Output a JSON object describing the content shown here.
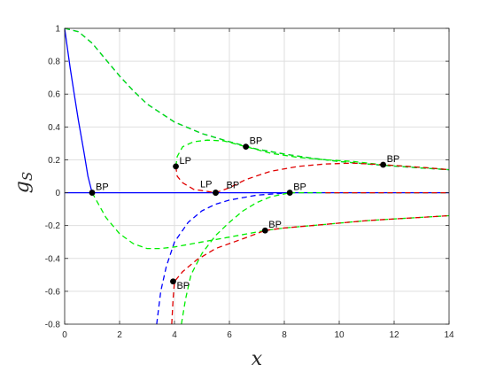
{
  "chart_data": {
    "type": "line",
    "xlabel": "x",
    "ylabel": {
      "main": "g",
      "sub": "S"
    },
    "xlim": [
      0,
      14
    ],
    "ylim": [
      -0.8,
      1
    ],
    "xticks": [
      0,
      2,
      4,
      6,
      8,
      10,
      12,
      14
    ],
    "yticks": [
      -0.8,
      -0.6,
      -0.4,
      -0.2,
      0,
      0.2,
      0.4,
      0.6,
      0.8,
      1
    ],
    "grid": true,
    "colors": {
      "blue": "#0000ff",
      "green": "#00ee00",
      "red": "#e00000",
      "axis": "#262626",
      "grid": "#dfdfdf"
    },
    "series": [
      {
        "color": "blue",
        "style": "solid",
        "points": [
          [
            0,
            1
          ],
          [
            0.1,
            0.88
          ],
          [
            0.2,
            0.76
          ],
          [
            0.35,
            0.6
          ],
          [
            0.5,
            0.44
          ],
          [
            0.7,
            0.25
          ],
          [
            0.85,
            0.1
          ],
          [
            1.0,
            0
          ]
        ]
      },
      {
        "color": "blue",
        "style": "solid",
        "points": [
          [
            0,
            0
          ],
          [
            14,
            0
          ]
        ]
      },
      {
        "color": "green",
        "style": "dashed",
        "points": [
          [
            8.2,
            0
          ],
          [
            14,
            0
          ]
        ]
      },
      {
        "color": "red",
        "style": "dashed",
        "points": [
          [
            9.5,
            0
          ],
          [
            14,
            0
          ]
        ]
      },
      {
        "color": "blue",
        "style": "dashed",
        "points": [
          [
            0,
            1
          ],
          [
            0.5,
            0.98
          ],
          [
            1,
            0.91
          ],
          [
            1.5,
            0.81
          ],
          [
            2,
            0.71
          ],
          [
            2.5,
            0.62
          ],
          [
            3,
            0.54
          ],
          [
            4,
            0.43
          ],
          [
            5,
            0.36
          ],
          [
            6,
            0.31
          ],
          [
            7,
            0.265
          ],
          [
            8,
            0.235
          ],
          [
            9,
            0.21
          ],
          [
            10,
            0.19
          ],
          [
            11,
            0.175
          ],
          [
            12,
            0.162
          ],
          [
            13,
            0.15
          ],
          [
            14,
            0.14
          ]
        ]
      },
      {
        "color": "green",
        "style": "dashed",
        "points": [
          [
            0,
            1
          ],
          [
            0.5,
            0.98
          ],
          [
            1,
            0.91
          ],
          [
            1.5,
            0.81
          ],
          [
            2,
            0.71
          ],
          [
            2.5,
            0.62
          ],
          [
            3,
            0.54
          ],
          [
            4,
            0.43
          ],
          [
            5,
            0.36
          ],
          [
            6,
            0.31
          ],
          [
            7,
            0.265
          ],
          [
            8,
            0.235
          ],
          [
            9,
            0.21
          ],
          [
            10,
            0.19
          ],
          [
            11,
            0.175
          ],
          [
            12,
            0.162
          ],
          [
            13,
            0.15
          ],
          [
            14,
            0.14
          ]
        ]
      },
      {
        "color": "green",
        "style": "dashed",
        "points": [
          [
            1,
            0
          ],
          [
            1.5,
            -0.15
          ],
          [
            2,
            -0.25
          ],
          [
            2.5,
            -0.31
          ],
          [
            3,
            -0.34
          ],
          [
            3.5,
            -0.34
          ],
          [
            4,
            -0.33
          ],
          [
            5,
            -0.3
          ],
          [
            6,
            -0.27
          ],
          [
            7.3,
            -0.23
          ],
          [
            8,
            -0.215
          ],
          [
            9,
            -0.2
          ],
          [
            10,
            -0.185
          ],
          [
            11,
            -0.17
          ],
          [
            12,
            -0.16
          ],
          [
            13,
            -0.15
          ],
          [
            14,
            -0.14
          ]
        ]
      },
      {
        "color": "red",
        "style": "dashed",
        "points": [
          [
            7.3,
            -0.23
          ],
          [
            8,
            -0.215
          ],
          [
            9,
            -0.2
          ],
          [
            10,
            -0.185
          ],
          [
            11,
            -0.17
          ],
          [
            12,
            -0.16
          ],
          [
            13,
            -0.15
          ],
          [
            14,
            -0.14
          ]
        ]
      },
      {
        "color": "blue",
        "style": "dashed",
        "points": [
          [
            3.35,
            -0.8
          ],
          [
            3.5,
            -0.6
          ],
          [
            3.7,
            -0.45
          ],
          [
            4,
            -0.3
          ],
          [
            4.5,
            -0.18
          ],
          [
            5,
            -0.11
          ],
          [
            5.5,
            -0.07
          ],
          [
            6,
            -0.045
          ],
          [
            7,
            -0.015
          ],
          [
            8.2,
            0
          ]
        ]
      },
      {
        "color": "green",
        "style": "dashed",
        "points": [
          [
            4.25,
            -0.8
          ],
          [
            4.4,
            -0.65
          ],
          [
            4.6,
            -0.5
          ],
          [
            5,
            -0.37
          ],
          [
            5.5,
            -0.26
          ],
          [
            6,
            -0.18
          ],
          [
            6.5,
            -0.11
          ],
          [
            7,
            -0.06
          ],
          [
            7.5,
            -0.025
          ],
          [
            8.2,
            0
          ]
        ]
      },
      {
        "color": "green",
        "style": "dashed",
        "points": [
          [
            4.05,
            0.16
          ],
          [
            4.1,
            0.22
          ],
          [
            4.3,
            0.28
          ],
          [
            4.7,
            0.31
          ],
          [
            5.2,
            0.32
          ],
          [
            5.8,
            0.315
          ],
          [
            6.6,
            0.28
          ],
          [
            7.5,
            0.24
          ],
          [
            8.5,
            0.215
          ],
          [
            9.5,
            0.2
          ],
          [
            10.5,
            0.19
          ],
          [
            11.6,
            0.17
          ],
          [
            12.5,
            0.16
          ],
          [
            13.3,
            0.15
          ],
          [
            14,
            0.14
          ]
        ]
      },
      {
        "color": "red",
        "style": "dashed",
        "points": [
          [
            4.05,
            0.16
          ],
          [
            4.1,
            0.1
          ],
          [
            4.3,
            0.06
          ],
          [
            4.7,
            0.02
          ],
          [
            5.5,
            0
          ],
          [
            6,
            0.03
          ],
          [
            6.6,
            0.08
          ],
          [
            7.5,
            0.13
          ],
          [
            8.5,
            0.16
          ],
          [
            9.5,
            0.175
          ],
          [
            10.5,
            0.18
          ],
          [
            11.6,
            0.17
          ],
          [
            12.5,
            0.16
          ],
          [
            13.3,
            0.15
          ],
          [
            14,
            0.14
          ]
        ]
      },
      {
        "color": "red",
        "style": "dashed",
        "points": [
          [
            3.9,
            -0.8
          ],
          [
            3.95,
            -0.65
          ],
          [
            4.0,
            -0.54
          ],
          [
            4.3,
            -0.48
          ],
          [
            4.8,
            -0.41
          ],
          [
            5.5,
            -0.34
          ],
          [
            6.5,
            -0.28
          ],
          [
            7.3,
            -0.23
          ]
        ]
      }
    ],
    "markers": [
      {
        "label": "BP",
        "x": 1.0,
        "y": 0
      },
      {
        "label": "LP",
        "x": 4.05,
        "y": 0.16
      },
      {
        "label": "LP",
        "x": 5.5,
        "y": 0,
        "label_pos": "left"
      },
      {
        "label": "BP",
        "x": 5.5,
        "y": 0,
        "label_pos": "right-up"
      },
      {
        "label": "BP",
        "x": 6.6,
        "y": 0.28
      },
      {
        "label": "BP",
        "x": 8.2,
        "y": 0
      },
      {
        "label": "BP",
        "x": 11.6,
        "y": 0.17
      },
      {
        "label": "BP",
        "x": 7.3,
        "y": -0.23
      },
      {
        "label": "BP",
        "x": 3.95,
        "y": -0.54
      }
    ]
  }
}
